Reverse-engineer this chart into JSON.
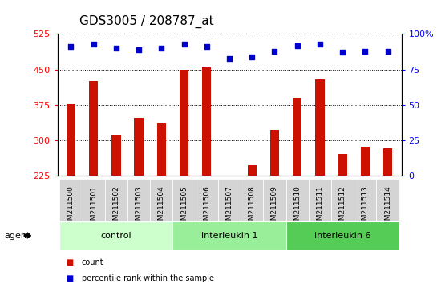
{
  "title": "GDS3005 / 208787_at",
  "samples": [
    "GSM211500",
    "GSM211501",
    "GSM211502",
    "GSM211503",
    "GSM211504",
    "GSM211505",
    "GSM211506",
    "GSM211507",
    "GSM211508",
    "GSM211509",
    "GSM211510",
    "GSM211511",
    "GSM211512",
    "GSM211513",
    "GSM211514"
  ],
  "counts": [
    376,
    426,
    313,
    348,
    338,
    449,
    455,
    222,
    248,
    323,
    390,
    430,
    272,
    286,
    284
  ],
  "percentiles": [
    91,
    93,
    90,
    89,
    90,
    93,
    91,
    83,
    84,
    88,
    92,
    93,
    87,
    88,
    88
  ],
  "groups": [
    {
      "label": "control",
      "start": 0,
      "end": 5,
      "color": "#ccffcc"
    },
    {
      "label": "interleukin 1",
      "start": 5,
      "end": 10,
      "color": "#99ee99"
    },
    {
      "label": "interleukin 6",
      "start": 10,
      "end": 15,
      "color": "#55cc55"
    }
  ],
  "ylim_left": [
    225,
    525
  ],
  "ylim_right": [
    0,
    100
  ],
  "yticks_left": [
    225,
    300,
    375,
    450,
    525
  ],
  "yticks_right": [
    0,
    25,
    50,
    75,
    100
  ],
  "ytick_right_labels": [
    "0",
    "25",
    "50",
    "75",
    "100%"
  ],
  "bar_color": "#cc1100",
  "dot_color": "#0000cc",
  "plot_bg": "#ffffff",
  "xlabel_bg": "#d4d4d4",
  "grid_color": "#000000",
  "title_fontsize": 11,
  "tick_fontsize": 8,
  "bar_width": 0.4,
  "agent_label": "agent"
}
